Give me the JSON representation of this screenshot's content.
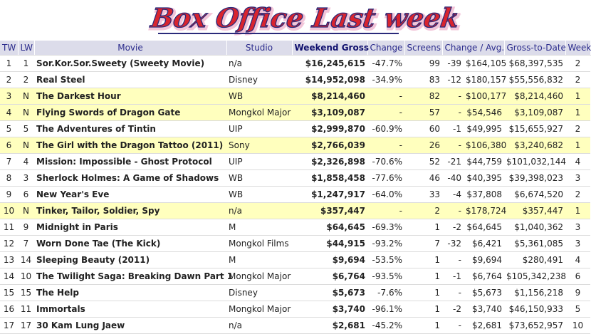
{
  "title": "Box Office Last week",
  "columns": [
    "TW",
    "LW",
    "Movie",
    "Studio",
    "Weekend Gross",
    "Change",
    "Screens",
    "Change / Avg.",
    "Gross-to-Date",
    "Week"
  ],
  "rows": [
    {
      "tw": "1",
      "lw": "1",
      "movie": "Sor.Kor.Sor.Sweety (Sweety Movie)",
      "studio": "n/a",
      "gross": "$16,245,615",
      "change": "-47.7%",
      "screens": "99",
      "screen_change": "-39",
      "avg": "$164,105",
      "gtd": "$68,397,535",
      "week": "2",
      "highlight": false
    },
    {
      "tw": "2",
      "lw": "2",
      "movie": "Real Steel",
      "studio": "Disney",
      "gross": "$14,952,098",
      "change": "-34.9%",
      "screens": "83",
      "screen_change": "-12",
      "avg": "$180,157",
      "gtd": "$55,556,832",
      "week": "2",
      "highlight": false
    },
    {
      "tw": "3",
      "lw": "N",
      "movie": "The Darkest Hour",
      "studio": "WB",
      "gross": "$8,214,460",
      "change": "-",
      "screens": "82",
      "screen_change": "-",
      "avg": "$100,177",
      "gtd": "$8,214,460",
      "week": "1",
      "highlight": true
    },
    {
      "tw": "4",
      "lw": "N",
      "movie": "Flying Swords of Dragon Gate",
      "studio": "Mongkol Major",
      "gross": "$3,109,087",
      "change": "-",
      "screens": "57",
      "screen_change": "-",
      "avg": "$54,546",
      "gtd": "$3,109,087",
      "week": "1",
      "highlight": true
    },
    {
      "tw": "5",
      "lw": "5",
      "movie": "The Adventures of Tintin",
      "studio": "UIP",
      "gross": "$2,999,870",
      "change": "-60.9%",
      "screens": "60",
      "screen_change": "-1",
      "avg": "$49,995",
      "gtd": "$15,655,927",
      "week": "2",
      "highlight": false
    },
    {
      "tw": "6",
      "lw": "N",
      "movie": "The Girl with the Dragon Tattoo (2011)",
      "studio": "Sony",
      "gross": "$2,766,039",
      "change": "-",
      "screens": "26",
      "screen_change": "-",
      "avg": "$106,380",
      "gtd": "$3,240,682",
      "week": "1",
      "highlight": true
    },
    {
      "tw": "7",
      "lw": "4",
      "movie": "Mission: Impossible - Ghost Protocol",
      "studio": "UIP",
      "gross": "$2,326,898",
      "change": "-70.6%",
      "screens": "52",
      "screen_change": "-21",
      "avg": "$44,759",
      "gtd": "$101,032,144",
      "week": "4",
      "highlight": false
    },
    {
      "tw": "8",
      "lw": "3",
      "movie": "Sherlock Holmes: A Game of Shadows",
      "studio": "WB",
      "gross": "$1,858,458",
      "change": "-77.6%",
      "screens": "46",
      "screen_change": "-40",
      "avg": "$40,395",
      "gtd": "$39,398,023",
      "week": "3",
      "highlight": false
    },
    {
      "tw": "9",
      "lw": "6",
      "movie": "New Year's Eve",
      "studio": "WB",
      "gross": "$1,247,917",
      "change": "-64.0%",
      "screens": "33",
      "screen_change": "-4",
      "avg": "$37,808",
      "gtd": "$6,674,520",
      "week": "2",
      "highlight": false
    },
    {
      "tw": "10",
      "lw": "N",
      "movie": "Tinker, Tailor, Soldier, Spy",
      "studio": "n/a",
      "gross": "$357,447",
      "change": "-",
      "screens": "2",
      "screen_change": "-",
      "avg": "$178,724",
      "gtd": "$357,447",
      "week": "1",
      "highlight": true
    },
    {
      "tw": "11",
      "lw": "9",
      "movie": "Midnight in Paris",
      "studio": "M",
      "gross": "$64,645",
      "change": "-69.3%",
      "screens": "1",
      "screen_change": "-2",
      "avg": "$64,645",
      "gtd": "$1,040,362",
      "week": "3",
      "highlight": false
    },
    {
      "tw": "12",
      "lw": "7",
      "movie": "Worn Done Tae (The Kick)",
      "studio": "Mongkol Films",
      "gross": "$44,915",
      "change": "-93.2%",
      "screens": "7",
      "screen_change": "-32",
      "avg": "$6,421",
      "gtd": "$5,361,085",
      "week": "3",
      "highlight": false
    },
    {
      "tw": "13",
      "lw": "14",
      "movie": "Sleeping Beauty (2011)",
      "studio": "M",
      "gross": "$9,694",
      "change": "-53.5%",
      "screens": "1",
      "screen_change": "-",
      "avg": "$9,694",
      "gtd": "$280,491",
      "week": "4",
      "highlight": false
    },
    {
      "tw": "14",
      "lw": "10",
      "movie": "The Twilight Saga: Breaking Dawn Part 1",
      "studio": "Mongkol Major",
      "gross": "$6,764",
      "change": "-93.5%",
      "screens": "1",
      "screen_change": "-1",
      "avg": "$6,764",
      "gtd": "$105,342,238",
      "week": "6",
      "highlight": false
    },
    {
      "tw": "15",
      "lw": "15",
      "movie": "The Help",
      "studio": "Disney",
      "gross": "$5,673",
      "change": "-7.6%",
      "screens": "1",
      "screen_change": "-",
      "avg": "$5,673",
      "gtd": "$1,156,218",
      "week": "9",
      "highlight": false
    },
    {
      "tw": "16",
      "lw": "11",
      "movie": "Immortals",
      "studio": "Mongkol Major",
      "gross": "$3,740",
      "change": "-96.1%",
      "screens": "1",
      "screen_change": "-2",
      "avg": "$3,740",
      "gtd": "$46,150,933",
      "week": "5",
      "highlight": false
    },
    {
      "tw": "17",
      "lw": "17",
      "movie": "30 Kam Lung Jaew",
      "studio": "n/a",
      "gross": "$2,681",
      "change": "-45.2%",
      "screens": "1",
      "screen_change": "-",
      "avg": "$2,681",
      "gtd": "$73,652,957",
      "week": "10",
      "highlight": false
    }
  ]
}
